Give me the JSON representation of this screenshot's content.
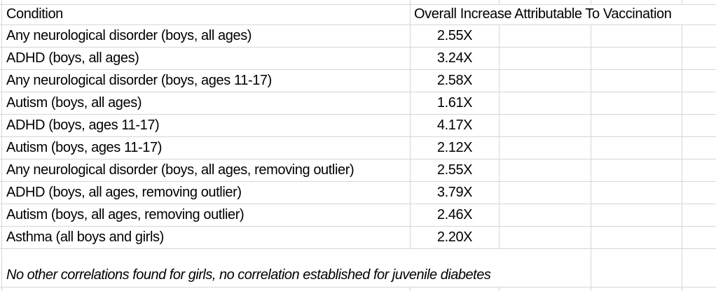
{
  "sheet": {
    "header": {
      "condition": "Condition",
      "value": "Overall Increase Attributable To Vaccination"
    },
    "rows": [
      {
        "condition": "Any neurological disorder (boys, all ages)",
        "value": "2.55X"
      },
      {
        "condition": "ADHD (boys, all ages)",
        "value": "3.24X"
      },
      {
        "condition": "Any neurological disorder (boys, ages 11-17)",
        "value": "2.58X"
      },
      {
        "condition": "Autism (boys, all ages)",
        "value": "1.61X"
      },
      {
        "condition": "ADHD (boys, ages 11-17)",
        "value": "4.17X"
      },
      {
        "condition": "Autism (boys, ages 11-17)",
        "value": "2.12X"
      },
      {
        "condition": "Any neurological disorder (boys, all ages, removing outlier)",
        "value": "2.55X"
      },
      {
        "condition": "ADHD (boys, all ages, removing outlier)",
        "value": "3.79X"
      },
      {
        "condition": "Autism (boys, all ages, removing outlier)",
        "value": "2.46X"
      },
      {
        "condition": "Asthma (all boys and girls)",
        "value": "2.20X"
      }
    ],
    "note": "No other correlations found for girls, no correlation established for juvenile diabetes",
    "colors": {
      "gridline": "#d6d6d6",
      "text": "#000000",
      "background": "#ffffff"
    }
  }
}
